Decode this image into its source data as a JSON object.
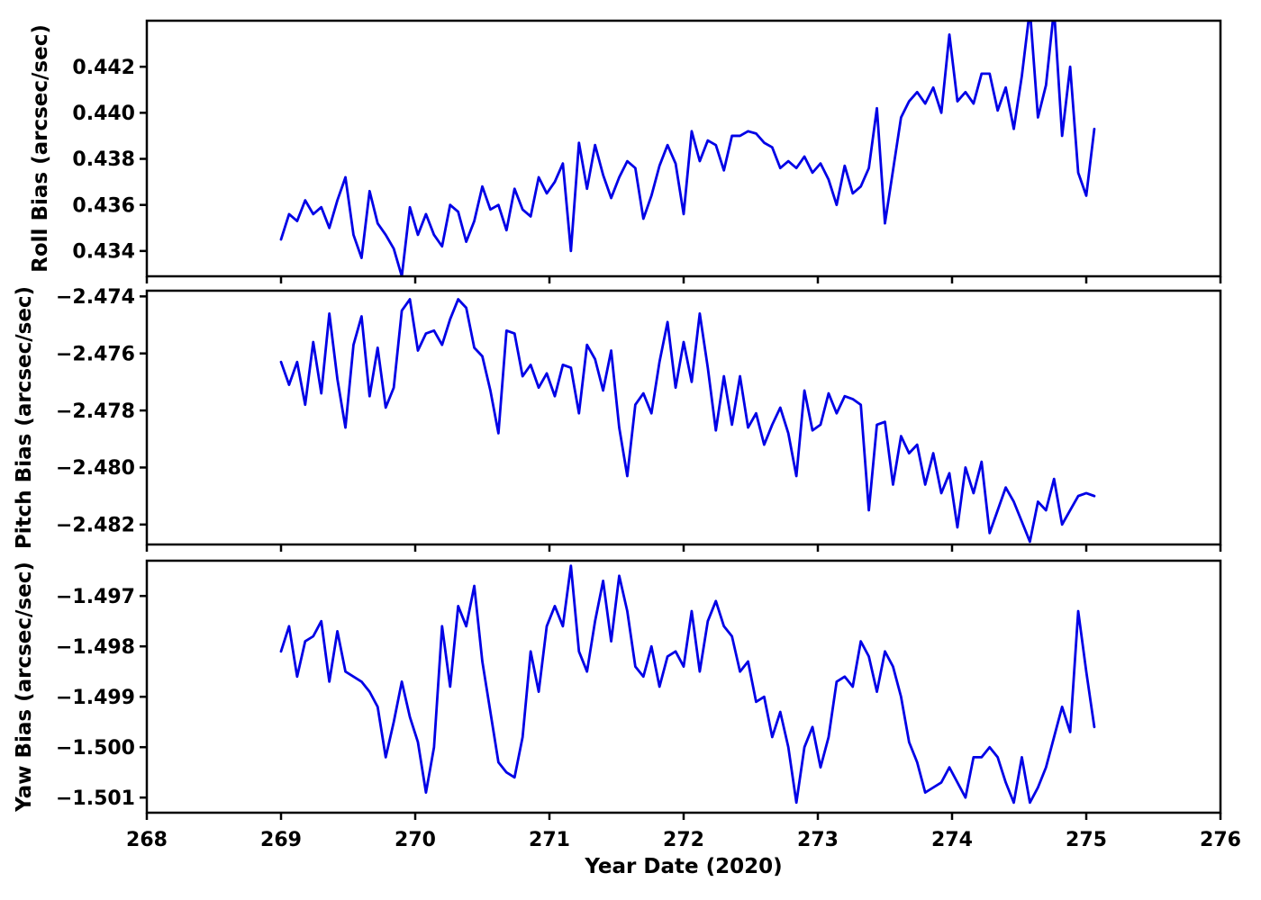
{
  "figure": {
    "background": "#FFFFFF",
    "frame_color": "#000000",
    "text_color": "#000000",
    "line_color": "#0000E6",
    "xlabel": "Year Date (2020)",
    "xlim": [
      268,
      276
    ],
    "xtick_values": [
      268,
      269,
      270,
      271,
      272,
      273,
      274,
      275,
      276
    ],
    "xtick_labels": [
      "268",
      "269",
      "270",
      "271",
      "272",
      "273",
      "274",
      "275",
      "276"
    ],
    "grid": false,
    "legend": null
  },
  "chart_data": [
    {
      "type": "line",
      "name": "roll-bias",
      "ylabel": "Roll Bias (arcsec/sec)",
      "ylim": [
        0.4329,
        0.444
      ],
      "ytick_values": [
        0.434,
        0.436,
        0.438,
        0.44,
        0.442
      ],
      "ytick_labels": [
        "0.434",
        "0.436",
        "0.438",
        "0.440",
        "0.442"
      ],
      "series_name": "Roll Bias",
      "x": [
        269.0,
        269.06,
        269.12,
        269.18,
        269.24,
        269.3,
        269.36,
        269.42,
        269.48,
        269.54,
        269.6,
        269.66,
        269.72,
        269.78,
        269.84,
        269.9,
        269.96,
        270.02,
        270.08,
        270.14,
        270.2,
        270.26,
        270.32,
        270.38,
        270.44,
        270.5,
        270.56,
        270.62,
        270.68,
        270.74,
        270.8,
        270.86,
        270.92,
        270.98,
        271.04,
        271.1,
        271.16,
        271.22,
        271.28,
        271.34,
        271.4,
        271.46,
        271.52,
        271.58,
        271.64,
        271.7,
        271.76,
        271.82,
        271.88,
        271.94,
        272.0,
        272.06,
        272.12,
        272.18,
        272.24,
        272.3,
        272.36,
        272.42,
        272.48,
        272.54,
        272.6,
        272.66,
        272.72,
        272.78,
        272.84,
        272.9,
        272.96,
        273.02,
        273.08,
        273.14,
        273.2,
        273.26,
        273.32,
        273.38,
        273.44,
        273.5,
        273.56,
        273.62,
        273.68,
        273.74,
        273.8,
        273.86,
        273.92,
        273.98,
        274.04,
        274.1,
        274.16,
        274.22,
        274.28,
        274.34,
        274.4,
        274.46,
        274.52,
        274.58,
        274.64,
        274.7,
        274.76,
        274.82,
        274.88,
        274.94,
        275.0,
        275.06
      ],
      "y": [
        0.4345,
        0.4356,
        0.4353,
        0.4362,
        0.4356,
        0.4359,
        0.435,
        0.4362,
        0.4372,
        0.4347,
        0.4337,
        0.4366,
        0.4352,
        0.4347,
        0.4341,
        0.4329,
        0.4359,
        0.4347,
        0.4356,
        0.4347,
        0.4342,
        0.436,
        0.4357,
        0.4344,
        0.4353,
        0.4368,
        0.4358,
        0.436,
        0.4349,
        0.4367,
        0.4358,
        0.4355,
        0.4372,
        0.4365,
        0.437,
        0.4378,
        0.434,
        0.4387,
        0.4367,
        0.4386,
        0.4373,
        0.4363,
        0.4372,
        0.4379,
        0.4376,
        0.4354,
        0.4364,
        0.4377,
        0.4386,
        0.4378,
        0.4356,
        0.4392,
        0.4379,
        0.4388,
        0.4386,
        0.4375,
        0.439,
        0.439,
        0.4392,
        0.4391,
        0.4387,
        0.4385,
        0.4376,
        0.4379,
        0.4376,
        0.4381,
        0.4374,
        0.4378,
        0.4371,
        0.436,
        0.4377,
        0.4365,
        0.4368,
        0.4376,
        0.4402,
        0.4352,
        0.4375,
        0.4398,
        0.4405,
        0.4409,
        0.4404,
        0.4411,
        0.44,
        0.4434,
        0.4405,
        0.4409,
        0.4404,
        0.4417,
        0.4417,
        0.4401,
        0.4411,
        0.4393,
        0.4416,
        0.4445,
        0.4398,
        0.4412,
        0.4445,
        0.439,
        0.442,
        0.4374,
        0.4364,
        0.4393
      ]
    },
    {
      "type": "line",
      "name": "pitch-bias",
      "ylabel": "Pitch Bias (arcsec/sec)",
      "ylim": [
        -2.4827,
        -2.4738
      ],
      "ytick_values": [
        -2.474,
        -2.476,
        -2.478,
        -2.48,
        -2.482
      ],
      "ytick_labels": [
        "−2.474",
        "−2.476",
        "−2.478",
        "−2.480",
        "−2.482"
      ],
      "series_name": "Pitch Bias",
      "x": [
        269.0,
        269.06,
        269.12,
        269.18,
        269.24,
        269.3,
        269.36,
        269.42,
        269.48,
        269.54,
        269.6,
        269.66,
        269.72,
        269.78,
        269.84,
        269.9,
        269.96,
        270.02,
        270.08,
        270.14,
        270.2,
        270.26,
        270.32,
        270.38,
        270.44,
        270.5,
        270.56,
        270.62,
        270.68,
        270.74,
        270.8,
        270.86,
        270.92,
        270.98,
        271.04,
        271.1,
        271.16,
        271.22,
        271.28,
        271.34,
        271.4,
        271.46,
        271.52,
        271.58,
        271.64,
        271.7,
        271.76,
        271.82,
        271.88,
        271.94,
        272.0,
        272.06,
        272.12,
        272.18,
        272.24,
        272.3,
        272.36,
        272.42,
        272.48,
        272.54,
        272.6,
        272.66,
        272.72,
        272.78,
        272.84,
        272.9,
        272.96,
        273.02,
        273.08,
        273.14,
        273.2,
        273.26,
        273.32,
        273.38,
        273.44,
        273.5,
        273.56,
        273.62,
        273.68,
        273.74,
        273.8,
        273.86,
        273.92,
        273.98,
        274.04,
        274.1,
        274.16,
        274.22,
        274.28,
        274.34,
        274.4,
        274.46,
        274.52,
        274.58,
        274.64,
        274.7,
        274.76,
        274.82,
        274.88,
        274.94,
        275.0,
        275.06
      ],
      "y": [
        -2.4763,
        -2.4771,
        -2.4763,
        -2.4778,
        -2.4756,
        -2.4774,
        -2.4746,
        -2.4769,
        -2.4786,
        -2.4757,
        -2.4747,
        -2.4775,
        -2.4758,
        -2.4779,
        -2.4772,
        -2.4745,
        -2.4741,
        -2.4759,
        -2.4753,
        -2.4752,
        -2.4757,
        -2.4748,
        -2.4741,
        -2.4744,
        -2.4758,
        -2.4761,
        -2.4773,
        -2.4788,
        -2.4752,
        -2.4753,
        -2.4768,
        -2.4764,
        -2.4772,
        -2.4767,
        -2.4775,
        -2.4764,
        -2.4765,
        -2.4781,
        -2.4757,
        -2.4762,
        -2.4773,
        -2.4759,
        -2.4786,
        -2.4803,
        -2.4778,
        -2.4774,
        -2.4781,
        -2.4763,
        -2.4749,
        -2.4772,
        -2.4756,
        -2.477,
        -2.4746,
        -2.4765,
        -2.4787,
        -2.4768,
        -2.4785,
        -2.4768,
        -2.4786,
        -2.4781,
        -2.4792,
        -2.4785,
        -2.4779,
        -2.4788,
        -2.4803,
        -2.4773,
        -2.4787,
        -2.4785,
        -2.4774,
        -2.4781,
        -2.4775,
        -2.4776,
        -2.4778,
        -2.4815,
        -2.4785,
        -2.4784,
        -2.4806,
        -2.4789,
        -2.4795,
        -2.4792,
        -2.4806,
        -2.4795,
        -2.4809,
        -2.4802,
        -2.4821,
        -2.48,
        -2.4809,
        -2.4798,
        -2.4823,
        -2.4815,
        -2.4807,
        -2.4812,
        -2.4819,
        -2.4826,
        -2.4812,
        -2.4815,
        -2.4804,
        -2.482,
        -2.4815,
        -2.481,
        -2.4809,
        -2.481
      ]
    },
    {
      "type": "line",
      "name": "yaw-bias",
      "ylabel": "Yaw Bias (arcsec/sec)",
      "ylim": [
        -1.5013,
        -1.4963
      ],
      "ytick_values": [
        -1.497,
        -1.498,
        -1.499,
        -1.5,
        -1.501
      ],
      "ytick_labels": [
        "−1.497",
        "−1.498",
        "−1.499",
        "−1.500",
        "−1.501"
      ],
      "series_name": "Yaw Bias",
      "x": [
        269.0,
        269.06,
        269.12,
        269.18,
        269.24,
        269.3,
        269.36,
        269.42,
        269.48,
        269.54,
        269.6,
        269.66,
        269.72,
        269.78,
        269.84,
        269.9,
        269.96,
        270.02,
        270.08,
        270.14,
        270.2,
        270.26,
        270.32,
        270.38,
        270.44,
        270.5,
        270.56,
        270.62,
        270.68,
        270.74,
        270.8,
        270.86,
        270.92,
        270.98,
        271.04,
        271.1,
        271.16,
        271.22,
        271.28,
        271.34,
        271.4,
        271.46,
        271.52,
        271.58,
        271.64,
        271.7,
        271.76,
        271.82,
        271.88,
        271.94,
        272.0,
        272.06,
        272.12,
        272.18,
        272.24,
        272.3,
        272.36,
        272.42,
        272.48,
        272.54,
        272.6,
        272.66,
        272.72,
        272.78,
        272.84,
        272.9,
        272.96,
        273.02,
        273.08,
        273.14,
        273.2,
        273.26,
        273.32,
        273.38,
        273.44,
        273.5,
        273.56,
        273.62,
        273.68,
        273.74,
        273.8,
        273.86,
        273.92,
        273.98,
        274.04,
        274.1,
        274.16,
        274.22,
        274.28,
        274.34,
        274.4,
        274.46,
        274.52,
        274.58,
        274.64,
        274.7,
        274.76,
        274.82,
        274.88,
        274.94,
        275.0,
        275.06
      ],
      "y": [
        -1.4981,
        -1.4976,
        -1.4986,
        -1.4979,
        -1.4978,
        -1.4975,
        -1.4987,
        -1.4977,
        -1.4985,
        -1.4986,
        -1.4987,
        -1.4989,
        -1.4992,
        -1.5002,
        -1.4995,
        -1.4987,
        -1.4994,
        -1.4999,
        -1.5009,
        -1.5,
        -1.4976,
        -1.4988,
        -1.4972,
        -1.4976,
        -1.4968,
        -1.4983,
        -1.4993,
        -1.5003,
        -1.5005,
        -1.5006,
        -1.4998,
        -1.4981,
        -1.4989,
        -1.4976,
        -1.4972,
        -1.4976,
        -1.4964,
        -1.4981,
        -1.4985,
        -1.4975,
        -1.4967,
        -1.4979,
        -1.4966,
        -1.4973,
        -1.4984,
        -1.4986,
        -1.498,
        -1.4988,
        -1.4982,
        -1.4981,
        -1.4984,
        -1.4973,
        -1.4985,
        -1.4975,
        -1.4971,
        -1.4976,
        -1.4978,
        -1.4985,
        -1.4983,
        -1.4991,
        -1.499,
        -1.4998,
        -1.4993,
        -1.5,
        -1.5011,
        -1.5,
        -1.4996,
        -1.5004,
        -1.4998,
        -1.4987,
        -1.4986,
        -1.4988,
        -1.4979,
        -1.4982,
        -1.4989,
        -1.4981,
        -1.4984,
        -1.499,
        -1.4999,
        -1.5003,
        -1.5009,
        -1.5008,
        -1.5007,
        -1.5004,
        -1.5007,
        -1.501,
        -1.5002,
        -1.5002,
        -1.5,
        -1.5002,
        -1.5007,
        -1.5011,
        -1.5002,
        -1.5011,
        -1.5008,
        -1.5004,
        -1.4998,
        -1.4992,
        -1.4997,
        -1.4973,
        -1.4985,
        -1.4996
      ]
    }
  ]
}
